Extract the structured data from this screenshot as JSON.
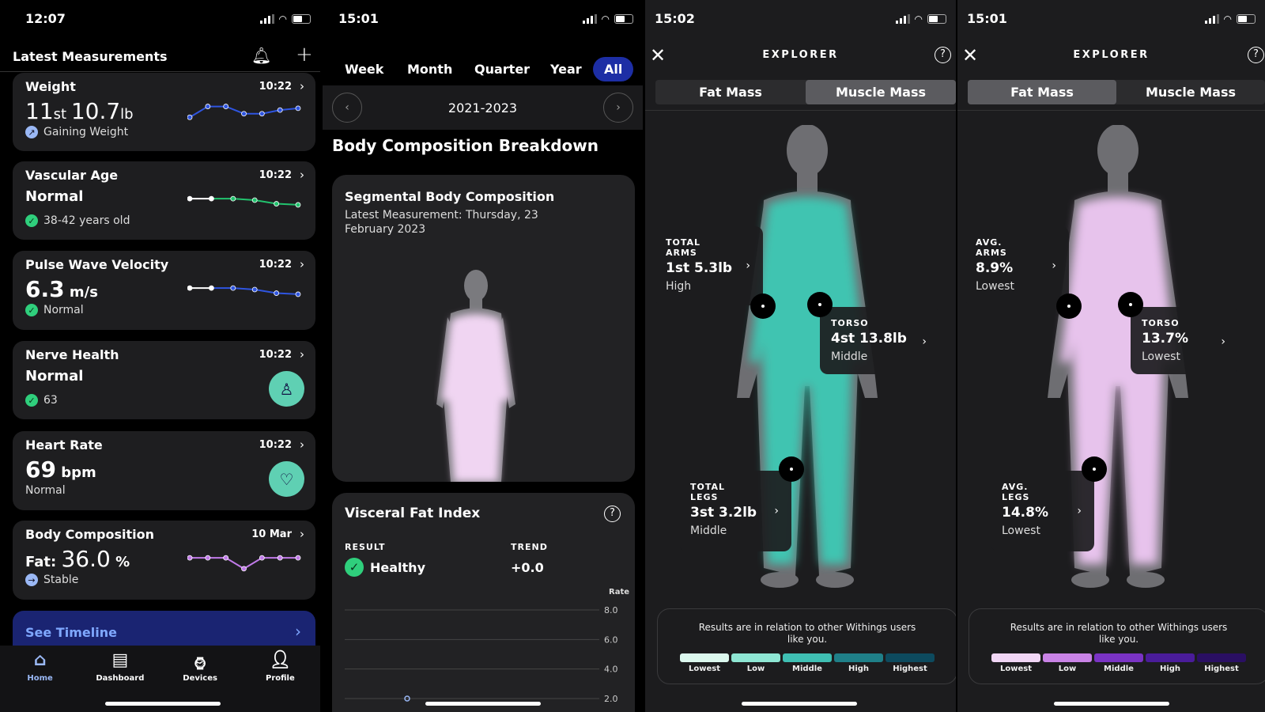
{
  "panel1": {
    "status_time": "12:07",
    "header": "Latest Measurements",
    "cards": [
      {
        "title": "Weight",
        "time": "10:22",
        "value_a": "11",
        "unit_a": "st",
        "value_b": "10.7",
        "unit_b": "lb",
        "sub": "Gaining Weight",
        "status_icon": "arrow-up-right-icon",
        "trend": [
          3,
          6,
          6,
          4,
          4,
          5,
          5.5
        ],
        "colors": [
          "#2f55e0"
        ]
      },
      {
        "title": "Vascular Age",
        "time": "10:22",
        "value": "Normal",
        "sub": "38-42 years old",
        "status_icon": "check-icon",
        "trend": [
          5,
          5,
          5,
          4.6,
          3.6,
          3.3
        ],
        "colors": [
          "#ffffff",
          "#22c36e"
        ]
      },
      {
        "title": "Pulse Wave Velocity",
        "time": "10:22",
        "value": "6.3",
        "unit": "m/s",
        "sub": "Normal",
        "status_icon": "check-icon",
        "trend": [
          5,
          5,
          5,
          4.6,
          3.6,
          3.3
        ],
        "colors": [
          "#ffffff",
          "#2f55e0"
        ]
      },
      {
        "title": "Nerve Health",
        "time": "10:22",
        "value": "Normal",
        "sub": "63",
        "status_icon": "check-icon",
        "button_icon": "foot-icon"
      },
      {
        "title": "Heart Rate",
        "time": "10:22",
        "value": "69",
        "unit": "bpm",
        "sub": "Normal",
        "button_icon": "heart-icon"
      },
      {
        "title": "Body Composition",
        "time": "10 Mar",
        "value_label": "Fat:",
        "value": "36.0",
        "unit": "%",
        "sub": "Stable",
        "status_icon": "arrow-right-icon",
        "trend": [
          5,
          5,
          5,
          2,
          5,
          5,
          5
        ],
        "colors": [
          "#c07ae8"
        ]
      }
    ],
    "timeline": "See Timeline",
    "nav": [
      "Home",
      "Dashboard",
      "Devices",
      "Profile"
    ],
    "accent": "#1d2ea5"
  },
  "panel2": {
    "status_time": "15:01",
    "tabs": [
      "Week",
      "Month",
      "Quarter",
      "Year",
      "All"
    ],
    "active_tab": "All",
    "date_range": "2021-2023",
    "section_title": "Body Composition Breakdown",
    "segmental": {
      "title": "Segmental Body Composition",
      "subtitle": "Latest Measurement: Thursday, 23 February 2023"
    },
    "visceral": {
      "title": "Visceral Fat Index",
      "result_label": "RESULT",
      "result": "Healthy",
      "trend_label": "TREND",
      "trend": "+0.0",
      "chart_data": {
        "type": "scatter",
        "ylabel": "Rate",
        "yticks": [
          "8.0",
          "6.0",
          "4.0",
          "2.0"
        ],
        "ylim": [
          2,
          8
        ],
        "points": [
          {
            "y": 2.0
          }
        ],
        "grid": true
      }
    }
  },
  "panel3": {
    "status_time": "15:02",
    "title": "EXPLORER",
    "tabs": [
      "Fat Mass",
      "Muscle Mass"
    ],
    "active_tab": "Muscle Mass",
    "labels": [
      {
        "k1": "TOTAL",
        "k2": "ARMS",
        "v": "1st 5.3lb",
        "s": "High"
      },
      {
        "k1": "TORSO",
        "k2": "",
        "v": "4st 13.8lb",
        "s": "Middle"
      },
      {
        "k1": "TOTAL",
        "k2": "LEGS",
        "v": "3st 3.2lb",
        "s": "Middle"
      }
    ],
    "legend_text": "Results are in relation to other Withings users like you.",
    "scale": [
      "Lowest",
      "Low",
      "Middle",
      "High",
      "Highest"
    ],
    "scale_colors": [
      "#dcf8ee",
      "#8ee6d3",
      "#3fbfb3",
      "#1f7f88",
      "#0d4a5e"
    ],
    "body_color": "#3fc4b1"
  },
  "panel4": {
    "status_time": "15:01",
    "title": "EXPLORER",
    "tabs": [
      "Fat Mass",
      "Muscle Mass"
    ],
    "active_tab": "Fat Mass",
    "labels": [
      {
        "k1": "AVG.",
        "k2": "ARMS",
        "v": "8.9%",
        "s": "Lowest"
      },
      {
        "k1": "TORSO",
        "k2": "",
        "v": "13.7%",
        "s": "Lowest"
      },
      {
        "k1": "AVG.",
        "k2": "LEGS",
        "v": "14.8%",
        "s": "Lowest"
      }
    ],
    "legend_text": "Results are in relation to other Withings users like you.",
    "scale": [
      "Lowest",
      "Low",
      "Middle",
      "High",
      "Highest"
    ],
    "scale_colors": [
      "#f1d6f5",
      "#c983e6",
      "#7a33c4",
      "#4a1c9a",
      "#2a0f63"
    ],
    "body_color": "#e7c3ec"
  }
}
